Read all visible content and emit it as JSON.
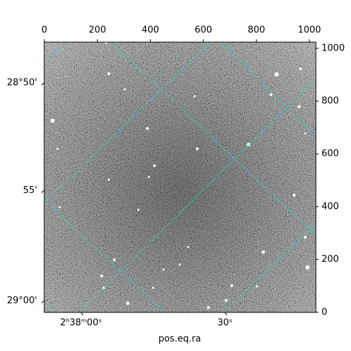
{
  "chart_data": {
    "type": "image",
    "xlabel": "pos.eq.ra",
    "xlim": [
      -0.5,
      1024.5
    ],
    "ylim": [
      -0.5,
      1023.5
    ],
    "xticks": [
      0,
      200,
      400,
      600,
      800,
      1000
    ],
    "yticks": [
      0,
      200,
      400,
      600,
      800,
      1000
    ],
    "ra_ticks": [
      {
        "value": 138,
        "label": "2ʰ38ᵐ00ˢ"
      },
      {
        "value": 681,
        "label": "30ˢ"
      }
    ],
    "dec_ticks": [
      {
        "value": 869,
        "label": "28°50'"
      },
      {
        "value": 461,
        "label": "55'"
      },
      {
        "value": 43,
        "label": "29°00'"
      }
    ],
    "grid_color": "#2ad4d4"
  }
}
